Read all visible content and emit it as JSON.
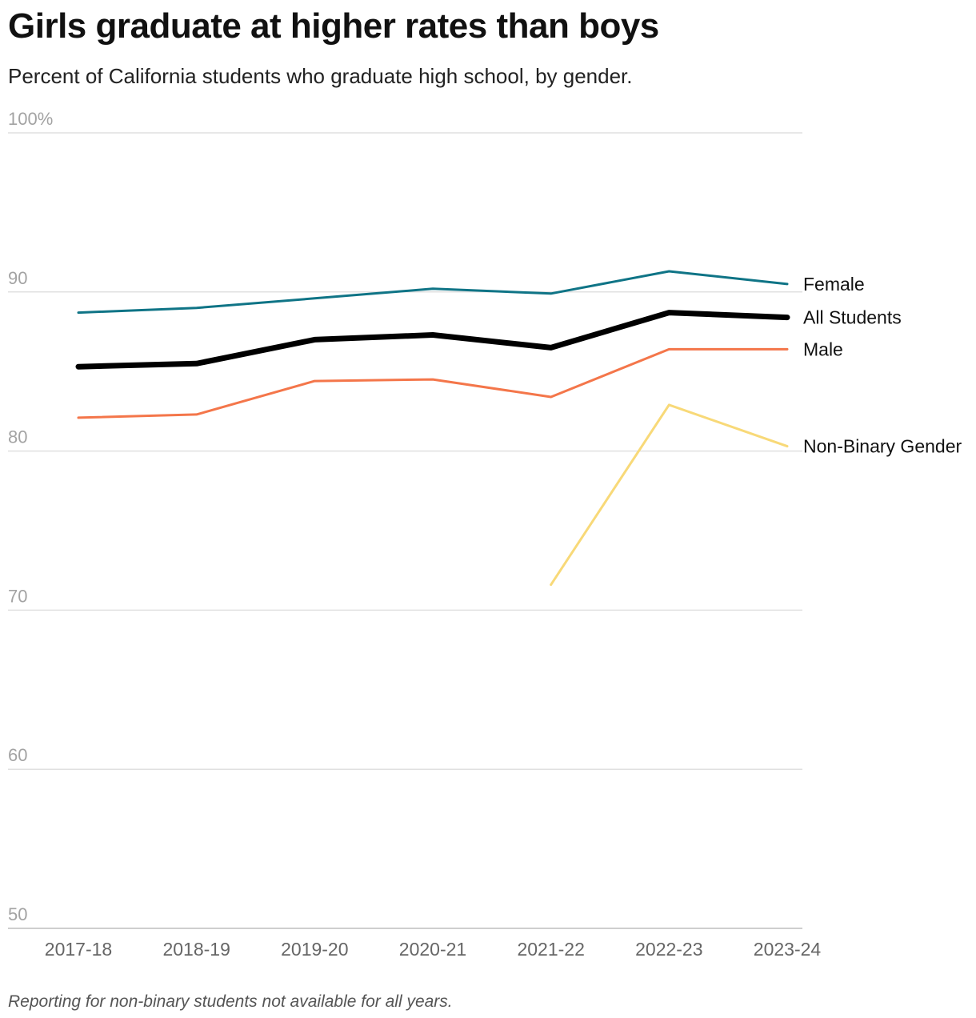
{
  "title": "Girls graduate at higher rates than boys",
  "subtitle": "Percent of California students who graduate high school, by gender.",
  "footnote": "Reporting for non-binary students not available for all years.",
  "chart_data": {
    "type": "line",
    "x": [
      "2017-18",
      "2018-19",
      "2019-20",
      "2020-21",
      "2021-22",
      "2022-23",
      "2023-24"
    ],
    "ylim": [
      50,
      100
    ],
    "yticks": [
      50,
      60,
      70,
      80,
      90,
      100
    ],
    "ytick_labels": [
      "50",
      "60",
      "70",
      "80",
      "90",
      "100%"
    ],
    "grid": true,
    "legend": "inline labels at right end of lines",
    "series": [
      {
        "name": "Female",
        "color": "#0f7486",
        "width": 3,
        "values": [
          88.7,
          89.0,
          89.6,
          90.2,
          89.9,
          91.3,
          90.5
        ]
      },
      {
        "name": "All Students",
        "color": "#000000",
        "width": 7,
        "values": [
          85.3,
          85.5,
          87.0,
          87.3,
          86.5,
          88.7,
          88.4
        ]
      },
      {
        "name": "Male",
        "color": "#f4764a",
        "width": 3,
        "values": [
          82.1,
          82.3,
          84.4,
          84.5,
          83.4,
          86.4,
          86.4
        ]
      },
      {
        "name": "Non-Binary Gender",
        "color": "#f8d978",
        "width": 3,
        "values": [
          null,
          null,
          null,
          null,
          71.6,
          82.9,
          80.3
        ]
      }
    ]
  }
}
